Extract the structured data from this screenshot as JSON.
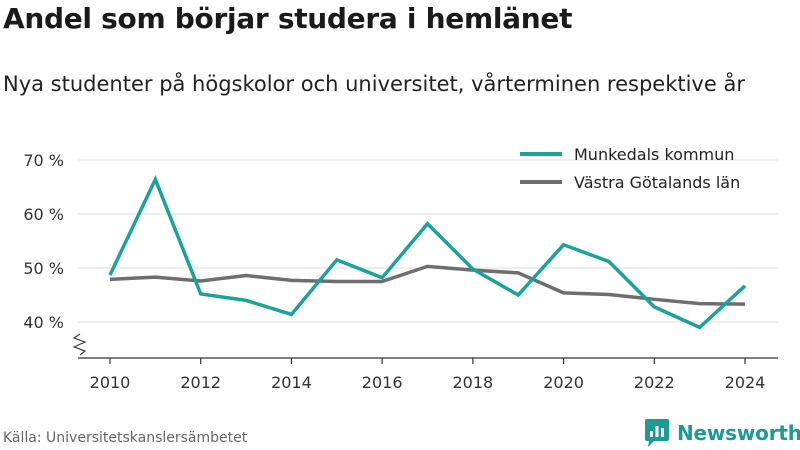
{
  "title": "Andel som börjar studera i hemlänet",
  "subtitle": "Nya studenter på högskolor och universitet, vårterminen respektive år",
  "source": "Källa: Universitetskanslersämbetet",
  "brand": {
    "name": "Newsworthy",
    "icon": "newsworthy-logo-icon",
    "color": "#1b9c91"
  },
  "chart_data": {
    "type": "line",
    "x": [
      2010,
      2011,
      2012,
      2013,
      2014,
      2015,
      2016,
      2017,
      2018,
      2019,
      2020,
      2021,
      2022,
      2023,
      2024
    ],
    "xticks": [
      2010,
      2012,
      2014,
      2016,
      2018,
      2020,
      2022,
      2024
    ],
    "yticks": [
      40,
      50,
      60,
      70
    ],
    "ytick_suffix": " %",
    "ylim": [
      37,
      72
    ],
    "y_axis_break": true,
    "grid": true,
    "legend_position": "top-right",
    "series": [
      {
        "name": "Munkedals kommun",
        "color": "#1aa398",
        "values": [
          48.7,
          66.4,
          45.2,
          44.0,
          41.4,
          51.5,
          48.2,
          58.2,
          49.8,
          45.0,
          54.3,
          51.2,
          42.8,
          39.0,
          46.7
        ]
      },
      {
        "name": "Västra Götalands län",
        "color": "#6e6e6e",
        "values": [
          47.9,
          48.3,
          47.6,
          48.6,
          47.7,
          47.5,
          47.5,
          50.3,
          49.6,
          49.1,
          45.4,
          45.1,
          44.2,
          43.4,
          43.3
        ]
      }
    ]
  }
}
